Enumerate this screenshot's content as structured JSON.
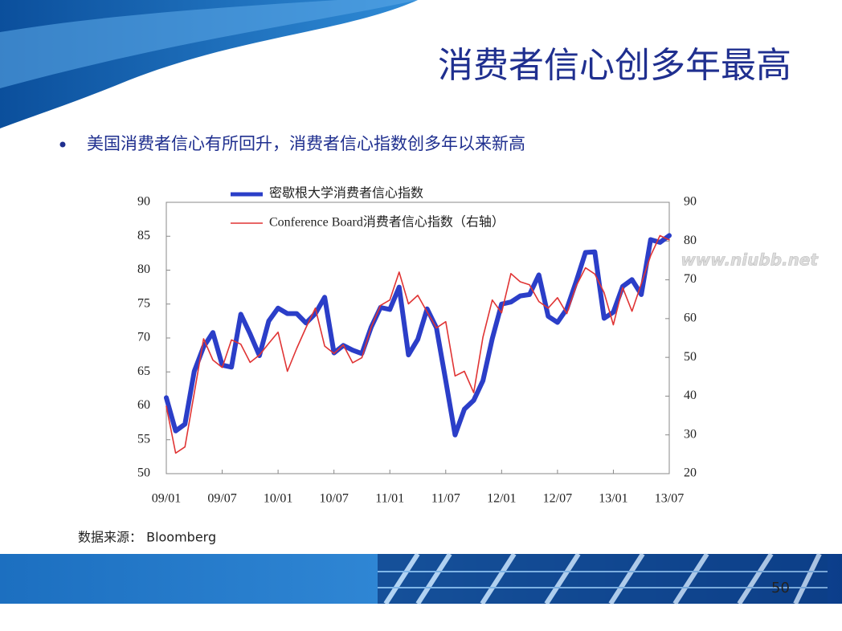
{
  "title": "消费者信心创多年最高",
  "bullet": "美国消费者信心有所回升，消费者信心指数创多年以来新高",
  "source": "数据来源： Bloomberg",
  "page_number": "50",
  "watermark": "www.niubb.net",
  "chart_data": {
    "type": "line",
    "categories": [
      "09/01",
      null,
      null,
      null,
      null,
      null,
      "09/07",
      null,
      null,
      null,
      null,
      null,
      "10/01",
      null,
      null,
      null,
      null,
      null,
      "10/07",
      null,
      null,
      null,
      null,
      null,
      "11/01",
      null,
      null,
      null,
      null,
      null,
      "11/07",
      null,
      null,
      null,
      null,
      null,
      "12/01",
      null,
      null,
      null,
      null,
      null,
      "12/07",
      null,
      null,
      null,
      null,
      null,
      "13/01",
      null,
      null,
      null,
      null,
      null,
      "13/07"
    ],
    "ylim": [
      50,
      90
    ],
    "yticks": [
      50,
      55,
      60,
      65,
      70,
      75,
      80,
      85,
      90
    ],
    "y2lim": [
      20,
      90
    ],
    "y2ticks": [
      20,
      30,
      40,
      50,
      60,
      70,
      80,
      90
    ],
    "legend": "upper left",
    "series": [
      {
        "name": "密歇根大学消费者信心指数",
        "color": "#2b3ec8",
        "values": [
          61.2,
          56.3,
          57.3,
          65.1,
          68.7,
          70.8,
          66.0,
          65.7,
          73.5,
          70.6,
          67.4,
          72.5,
          74.4,
          73.6,
          73.6,
          72.2,
          73.6,
          76.0,
          67.8,
          68.9,
          68.2,
          67.7,
          71.6,
          74.5,
          74.2,
          77.5,
          67.5,
          69.8,
          74.3,
          71.5,
          63.7,
          55.7,
          59.5,
          60.8,
          63.7,
          69.9,
          75.0,
          75.3,
          76.2,
          76.4,
          79.3,
          73.2,
          72.3,
          74.3,
          78.3,
          82.6,
          82.7,
          72.9,
          73.8,
          77.6,
          78.6,
          76.4,
          84.5,
          84.1,
          85.1
        ]
      },
      {
        "name": "Conference Board消费者信心指数（右轴）",
        "color": "#e03434",
        "axis": "y2",
        "values": [
          37.4,
          25.3,
          26.9,
          40.8,
          54.8,
          49.3,
          47.4,
          54.5,
          53.4,
          48.7,
          50.6,
          53.6,
          56.5,
          46.4,
          52.3,
          57.7,
          62.7,
          52.9,
          51.0,
          53.2,
          48.6,
          49.9,
          57.8,
          63.4,
          64.8,
          72.0,
          63.8,
          66.0,
          61.7,
          57.6,
          59.2,
          45.2,
          46.4,
          40.9,
          55.2,
          64.8,
          61.5,
          71.6,
          69.5,
          68.7,
          64.4,
          62.7,
          65.4,
          61.3,
          68.4,
          73.1,
          71.5,
          66.7,
          58.4,
          68.0,
          61.9,
          69.0,
          76.2,
          81.4,
          80.3
        ]
      }
    ]
  }
}
